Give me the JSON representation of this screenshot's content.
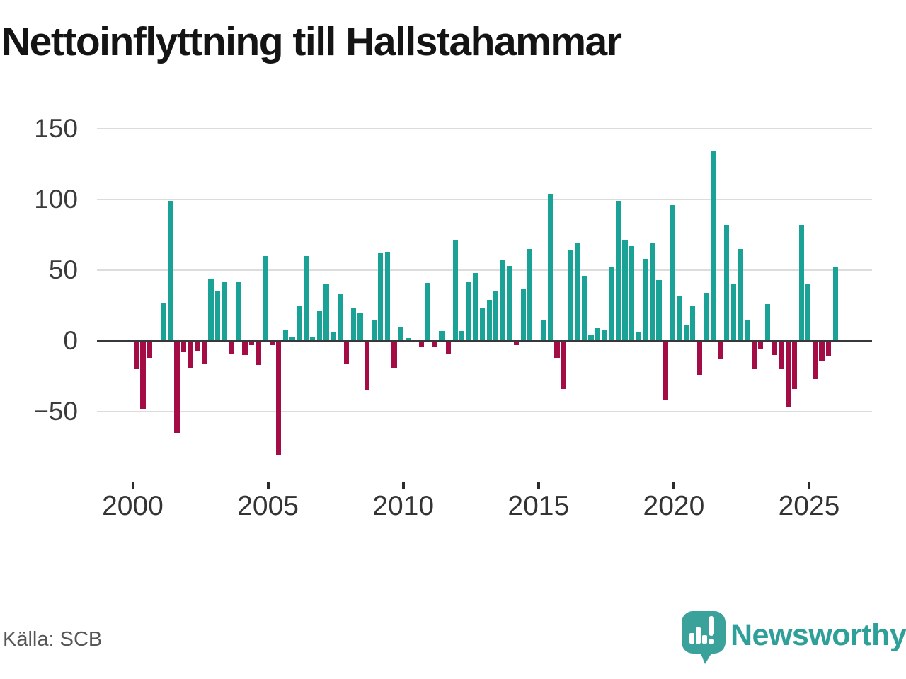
{
  "header": {
    "title": "Nettoinflyttning till Hallstahammar"
  },
  "footer": {
    "source": "Källa: SCB",
    "brand": "Newsworthy"
  },
  "chart_data": {
    "type": "bar",
    "title": "Nettoinflyttning till Hallstahammar",
    "frequency": "quarterly",
    "start_period": "2000 Q1",
    "end_period": "2025 Q4",
    "x_axis_tick_labels": [
      "2000",
      "2005",
      "2010",
      "2015",
      "2020",
      "2025"
    ],
    "y_axis_tick_labels": [
      "150",
      "100",
      "50",
      "0",
      "−50"
    ],
    "y_axis_tick_values": [
      150,
      100,
      50,
      0,
      -50
    ],
    "values": [
      -20,
      -48,
      -12,
      0,
      27,
      99,
      -65,
      -8,
      -19,
      -7,
      -16,
      44,
      35,
      42,
      -9,
      42,
      -10,
      -3,
      -17,
      60,
      -3,
      -81,
      8,
      3,
      25,
      60,
      3,
      21,
      40,
      6,
      33,
      -16,
      23,
      20,
      -35,
      15,
      62,
      63,
      -19,
      10,
      2,
      0,
      -4,
      41,
      -4,
      7,
      -9,
      71,
      7,
      42,
      48,
      23,
      29,
      35,
      57,
      53,
      -3,
      37,
      65,
      0,
      15,
      104,
      -12,
      -34,
      64,
      69,
      46,
      4,
      9,
      8,
      52,
      99,
      71,
      67,
      6,
      58,
      69,
      43,
      -42,
      96,
      32,
      11,
      25,
      -24,
      34,
      134,
      -13,
      82,
      40,
      65,
      15,
      -20,
      -6,
      26,
      -10,
      -20,
      -47,
      -34,
      82,
      40,
      -27,
      -14,
      -11,
      52
    ],
    "colors": {
      "positive": "#19a295",
      "negative": "#a30c45",
      "gridline": "#dcdcdc",
      "axis": "#38383c",
      "brand": "#3aa19b",
      "brand_text": "#2ea099"
    },
    "legend": "none",
    "grid": "horizontal"
  }
}
